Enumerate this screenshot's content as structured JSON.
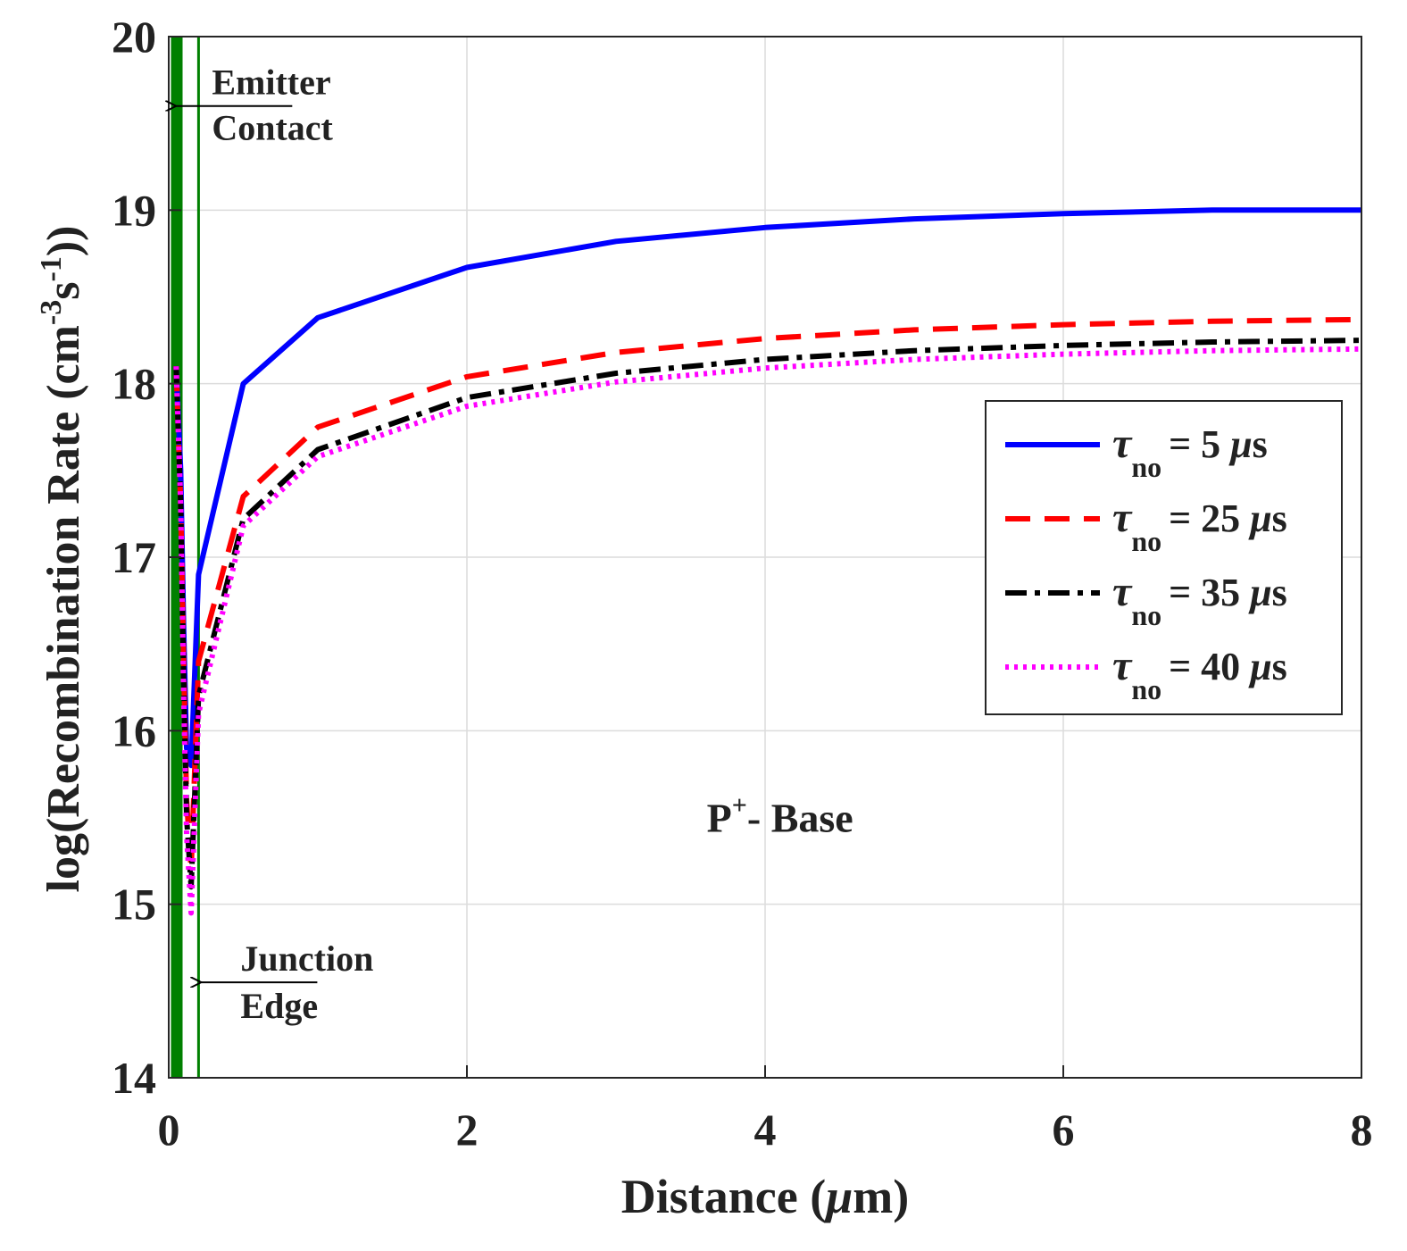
{
  "chart_data": {
    "type": "line",
    "title": "",
    "xlabel_prefix": "Distance (",
    "xlabel_mu": "μ",
    "xlabel_suffix": "m)",
    "ylabel_prefix": "log(Recombination Rate (cm",
    "ylabel_exp1": "-3",
    "ylabel_mid": "s",
    "ylabel_exp2": "-1",
    "ylabel_suffix": "))",
    "xlim": [
      0,
      8
    ],
    "ylim": [
      14,
      20
    ],
    "xticks": [
      0,
      2,
      4,
      6,
      8
    ],
    "yticks": [
      14,
      15,
      16,
      17,
      18,
      19,
      20
    ],
    "grid": true,
    "legend_position": "right",
    "series": [
      {
        "name": "τno = 5 μs",
        "tau": "τ",
        "sub": "no",
        "value_text": "= 5 ",
        "mu": "μ",
        "unit": "s",
        "color": "#0000ff",
        "dash": "solid",
        "x": [
          0.05,
          0.08,
          0.1,
          0.12,
          0.15,
          0.2,
          0.5,
          1,
          2,
          3,
          4,
          5,
          6,
          7,
          8
        ],
        "y": [
          18.1,
          17.5,
          16.6,
          15.9,
          15.8,
          16.9,
          18.0,
          18.38,
          18.67,
          18.82,
          18.9,
          18.95,
          18.98,
          19.0,
          19.0
        ]
      },
      {
        "name": "τno = 25 μs",
        "tau": "τ",
        "sub": "no",
        "value_text": "= 25 ",
        "mu": "μ",
        "unit": "s",
        "color": "#ff0000",
        "dash": "dashed",
        "x": [
          0.05,
          0.08,
          0.1,
          0.12,
          0.15,
          0.2,
          0.5,
          1,
          2,
          3,
          4,
          5,
          6,
          7,
          8
        ],
        "y": [
          18.1,
          17.3,
          16.4,
          15.6,
          15.2,
          16.4,
          17.35,
          17.75,
          18.04,
          18.18,
          18.26,
          18.31,
          18.34,
          18.36,
          18.37
        ]
      },
      {
        "name": "τno = 35 μs",
        "tau": "τ",
        "sub": "no",
        "value_text": "= 35 ",
        "mu": "μ",
        "unit": "s",
        "color": "#000000",
        "dash": "dashdot",
        "x": [
          0.05,
          0.08,
          0.1,
          0.12,
          0.15,
          0.2,
          0.5,
          1,
          2,
          3,
          4,
          5,
          6,
          7,
          8
        ],
        "y": [
          18.1,
          17.3,
          16.3,
          15.5,
          15.1,
          16.2,
          17.22,
          17.62,
          17.92,
          18.06,
          18.14,
          18.19,
          18.22,
          18.24,
          18.25
        ]
      },
      {
        "name": "τno = 40 μs",
        "tau": "τ",
        "sub": "no",
        "value_text": "= 40 ",
        "mu": "μ",
        "unit": "s",
        "color": "#ff00ff",
        "dash": "dotted",
        "x": [
          0.05,
          0.08,
          0.1,
          0.12,
          0.15,
          0.2,
          0.5,
          1,
          2,
          3,
          4,
          5,
          6,
          7,
          8
        ],
        "y": [
          18.1,
          17.3,
          16.2,
          15.4,
          14.95,
          16.1,
          17.18,
          17.58,
          17.87,
          18.01,
          18.09,
          18.14,
          18.17,
          18.19,
          18.2
        ]
      }
    ],
    "annotations": {
      "emitter_contact": {
        "line1": "Emitter",
        "line2": "Contact",
        "x": 0.02,
        "y": 19.6
      },
      "junction_edge": {
        "line1": "Junction",
        "line2": "Edge",
        "x": 0.2,
        "y": 14.55
      },
      "region_label": {
        "main": "P",
        "sup": "+",
        "rest": "- Base",
        "x": 4.1,
        "y": 15.5
      }
    },
    "vertical_markers": [
      {
        "name": "emitter-contact-band",
        "x": 0.03,
        "color": "#008000",
        "weight": "thick"
      },
      {
        "name": "junction-edge-line",
        "x": 0.2,
        "color": "#008000",
        "weight": "thin"
      }
    ]
  }
}
